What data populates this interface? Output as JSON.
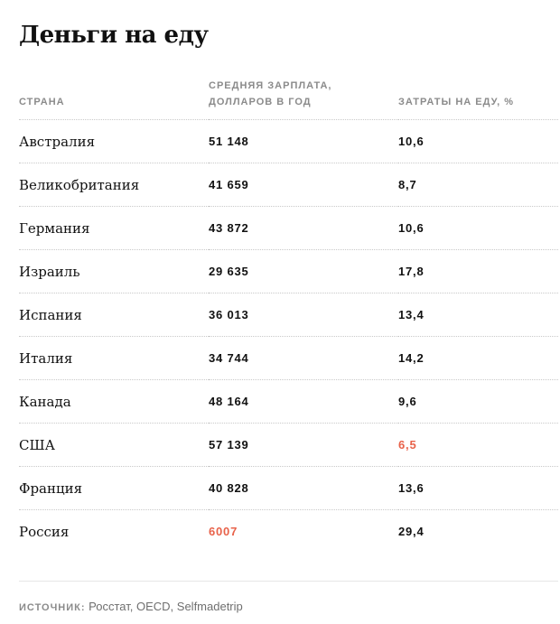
{
  "title": "Деньги на еду",
  "colors": {
    "highlight": "#e8624a",
    "header_text": "#8b8b8b"
  },
  "table": {
    "headers": {
      "country": "СТРАНА",
      "salary_line1": "СРЕДНЯЯ ЗАРПЛАТА,",
      "salary_line2": "ДОЛЛАРОВ В ГОД",
      "food": "ЗАТРАТЫ НА ЕДУ, %"
    },
    "rows": [
      {
        "country": "Австралия",
        "salary": "51 148",
        "food": "10,6",
        "salary_highlight": false,
        "food_highlight": false
      },
      {
        "country": "Великобритания",
        "salary": "41 659",
        "food": "8,7",
        "salary_highlight": false,
        "food_highlight": false
      },
      {
        "country": "Германия",
        "salary": "43 872",
        "food": "10,6",
        "salary_highlight": false,
        "food_highlight": false
      },
      {
        "country": "Израиль",
        "salary": "29 635",
        "food": "17,8",
        "salary_highlight": false,
        "food_highlight": false
      },
      {
        "country": "Испания",
        "salary": "36 013",
        "food": "13,4",
        "salary_highlight": false,
        "food_highlight": false
      },
      {
        "country": "Италия",
        "salary": "34 744",
        "food": "14,2",
        "salary_highlight": false,
        "food_highlight": false
      },
      {
        "country": "Канада",
        "salary": "48 164",
        "food": "9,6",
        "salary_highlight": false,
        "food_highlight": false
      },
      {
        "country": "США",
        "salary": "57 139",
        "food": "6,5",
        "salary_highlight": false,
        "food_highlight": true
      },
      {
        "country": "Франция",
        "salary": "40 828",
        "food": "13,6",
        "salary_highlight": false,
        "food_highlight": false
      },
      {
        "country": "Россия",
        "salary": "6007",
        "food": "29,4",
        "salary_highlight": true,
        "food_highlight": false
      }
    ]
  },
  "source": {
    "label": "ИСТОЧНИК:",
    "text": "Росстат, OECD, Selfmadetrip"
  }
}
